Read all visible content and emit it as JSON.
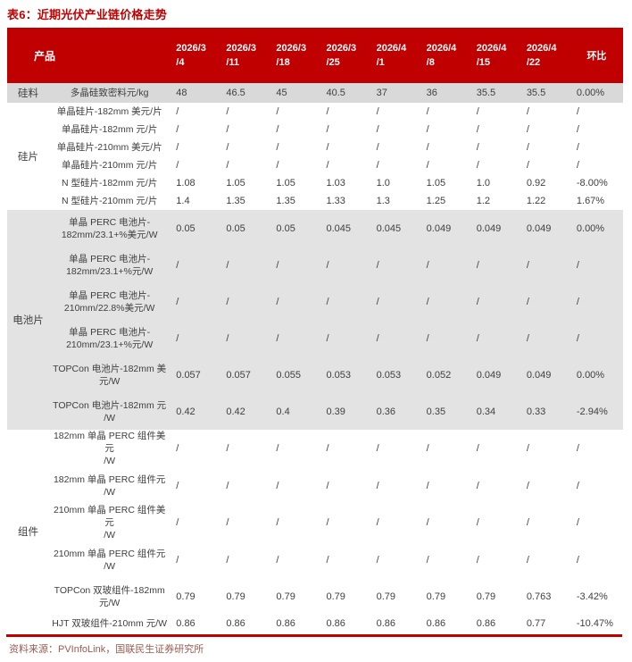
{
  "title": "表6：近期光伏产业链价格走势",
  "source_note": "资料来源：PVInfoLink，国联民生证券研究所",
  "colors": {
    "header_bg": "#C00000",
    "header_text": "#FFFFFF",
    "title_text": "#C00000",
    "row_gray": "#D9D9D9",
    "section_gray": "#E3E3E3",
    "divider": "#C00000",
    "source_text": "#9C5A50",
    "body_text": "#3F3F3F"
  },
  "chart_data": {
    "type": "table",
    "title": "表6：近期光伏产业链价格走势",
    "product_header": "产品",
    "wow_header": "环比",
    "date_headers": [
      [
        "2026/3",
        "/4"
      ],
      [
        "2026/3",
        "/11"
      ],
      [
        "2026/3",
        "/18"
      ],
      [
        "2026/3",
        "/25"
      ],
      [
        "2026/4",
        "/1"
      ],
      [
        "2026/4",
        "/8"
      ],
      [
        "2026/4",
        "/15"
      ],
      [
        "2026/4",
        "/22"
      ]
    ],
    "columns": [
      "产品",
      "2026/3/4",
      "2026/3/11",
      "2026/3/18",
      "2026/3/25",
      "2026/4/1",
      "2026/4/8",
      "2026/4/15",
      "2026/4/22",
      "环比"
    ],
    "groups": [
      {
        "category": "硅料",
        "shaded": false,
        "rows": [
          {
            "label_lines": [
              "多晶硅致密料元/kg"
            ],
            "highlight": true,
            "values": [
              "48",
              "46.5",
              "45",
              "40.5",
              "37",
              "36",
              "35.5",
              "35.5",
              "0.00%"
            ]
          }
        ]
      },
      {
        "category": "硅片",
        "shaded": false,
        "rows": [
          {
            "label_lines": [
              "单晶硅片-182mm 美元/片"
            ],
            "values": [
              "/",
              "/",
              "/",
              "/",
              "/",
              "/",
              "/",
              "/",
              "/"
            ]
          },
          {
            "label_lines": [
              "单晶硅片-182mm 元/片"
            ],
            "values": [
              "/",
              "/",
              "/",
              "/",
              "/",
              "/",
              "/",
              "/",
              "/"
            ]
          },
          {
            "label_lines": [
              "单晶硅片-210mm 美元/片"
            ],
            "values": [
              "/",
              "/",
              "/",
              "/",
              "/",
              "/",
              "/",
              "/",
              "/"
            ]
          },
          {
            "label_lines": [
              "单晶硅片-210mm 元/片"
            ],
            "values": [
              "/",
              "/",
              "/",
              "/",
              "/",
              "/",
              "/",
              "/",
              "/"
            ]
          },
          {
            "label_lines": [
              "N 型硅片-182mm 元/片"
            ],
            "values": [
              "1.08",
              "1.05",
              "1.05",
              "1.03",
              "1.0",
              "1.05",
              "1.0",
              "0.92",
              "-8.00%"
            ]
          },
          {
            "label_lines": [
              "N 型硅片-210mm 元/片"
            ],
            "values": [
              "1.4",
              "1.35",
              "1.35",
              "1.33",
              "1.3",
              "1.25",
              "1.2",
              "1.22",
              "1.67%"
            ]
          }
        ]
      },
      {
        "category": "电池片",
        "shaded": true,
        "rows": [
          {
            "label_lines": [
              "单晶 PERC 电池片-",
              "182mm/23.1+%美元/W"
            ],
            "values": [
              "0.05",
              "0.05",
              "0.05",
              "0.045",
              "0.045",
              "0.049",
              "0.049",
              "0.049",
              "0.00%"
            ]
          },
          {
            "label_lines": [
              "单晶 PERC 电池片-",
              "182mm/23.1+%元/W"
            ],
            "values": [
              "/",
              "/",
              "/",
              "/",
              "/",
              "/",
              "/",
              "/",
              "/"
            ]
          },
          {
            "label_lines": [
              "单晶 PERC 电池片-",
              "210mm/22.8%美元/W"
            ],
            "values": [
              "/",
              "/",
              "/",
              "/",
              "/",
              "/",
              "/",
              "/",
              "/"
            ]
          },
          {
            "label_lines": [
              "单晶 PERC 电池片-",
              "210mm/23.1+%元/W"
            ],
            "values": [
              "/",
              "/",
              "/",
              "/",
              "/",
              "/",
              "/",
              "/",
              "/"
            ]
          },
          {
            "label_lines": [
              "TOPCon 电池片-182mm 美",
              "元/W"
            ],
            "values": [
              "0.057",
              "0.057",
              "0.055",
              "0.053",
              "0.053",
              "0.052",
              "0.049",
              "0.049",
              "0.00%"
            ]
          },
          {
            "label_lines": [
              "TOPCon 电池片-182mm 元",
              "/W"
            ],
            "values": [
              "0.42",
              "0.42",
              "0.4",
              "0.39",
              "0.36",
              "0.35",
              "0.34",
              "0.33",
              "-2.94%"
            ]
          }
        ]
      },
      {
        "category": "组件",
        "shaded": false,
        "rows": [
          {
            "label_lines": [
              "182mm 单晶 PERC 组件美元",
              "/W"
            ],
            "values": [
              "/",
              "/",
              "/",
              "/",
              "/",
              "/",
              "/",
              "/",
              "/"
            ]
          },
          {
            "label_lines": [
              "182mm 单晶 PERC 组件元",
              "/W"
            ],
            "values": [
              "/",
              "/",
              "/",
              "/",
              "/",
              "/",
              "/",
              "/",
              "/"
            ]
          },
          {
            "label_lines": [
              "210mm 单晶 PERC 组件美元",
              "/W"
            ],
            "values": [
              "/",
              "/",
              "/",
              "/",
              "/",
              "/",
              "/",
              "/",
              "/"
            ]
          },
          {
            "label_lines": [
              "210mm 单晶 PERC 组件元",
              "/W"
            ],
            "values": [
              "/",
              "/",
              "/",
              "/",
              "/",
              "/",
              "/",
              "/",
              "/"
            ]
          },
          {
            "label_lines": [
              "TOPCon 双玻组件-182mm",
              "元/W"
            ],
            "values": [
              "0.79",
              "0.79",
              "0.79",
              "0.79",
              "0.79",
              "0.79",
              "0.79",
              "0.763",
              "-3.42%"
            ]
          },
          {
            "label_lines": [
              "HJT 双玻组件-210mm 元/W"
            ],
            "values": [
              "0.86",
              "0.86",
              "0.86",
              "0.86",
              "0.86",
              "0.86",
              "0.86",
              "0.77",
              "-10.47%"
            ]
          }
        ]
      }
    ]
  }
}
